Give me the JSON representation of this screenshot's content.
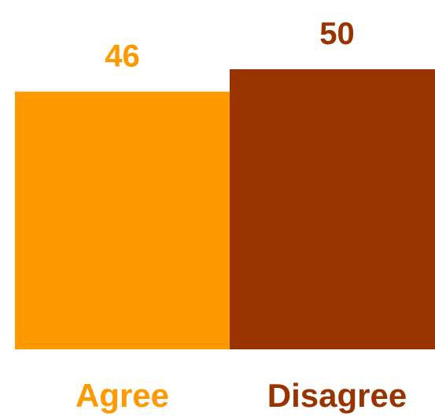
{
  "chart_data": {
    "type": "bar",
    "categories": [
      "Agree",
      "Disagree"
    ],
    "values": [
      46,
      50
    ],
    "colors": [
      "#FF9900",
      "#993300"
    ],
    "title": "",
    "xlabel": "",
    "ylabel": "",
    "ylim": [
      0,
      50
    ],
    "grid": false,
    "legend": "none"
  }
}
